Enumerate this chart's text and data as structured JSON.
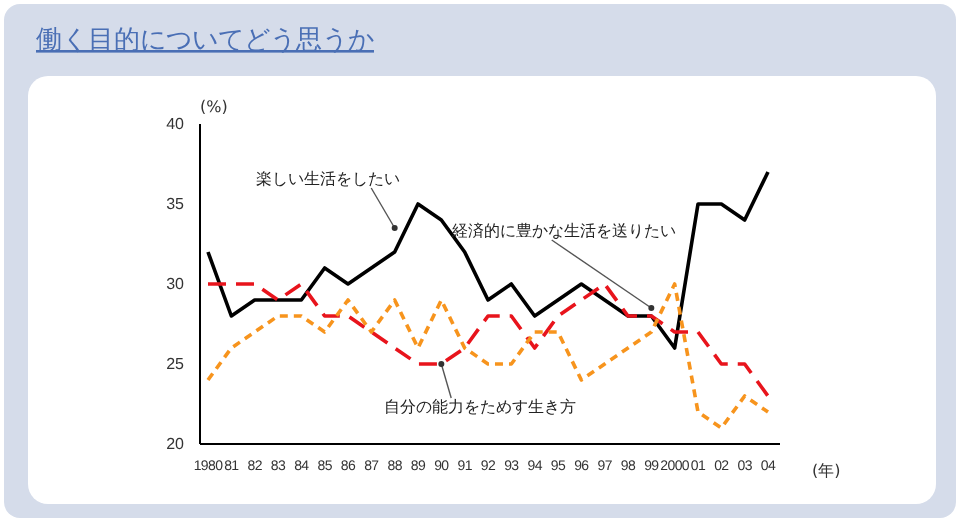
{
  "chart_data": {
    "type": "line",
    "title": "働く目的についてどう思うか",
    "ylabel": "(%)",
    "xlabel": "(年)",
    "categories": [
      "1980",
      "81",
      "82",
      "83",
      "84",
      "85",
      "86",
      "87",
      "88",
      "89",
      "90",
      "91",
      "92",
      "93",
      "94",
      "95",
      "96",
      "97",
      "98",
      "99",
      "2000",
      "01",
      "02",
      "03",
      "04"
    ],
    "series": [
      {
        "color": "#000000",
        "line_style": "solid",
        "values": [
          32,
          28,
          29,
          29,
          29,
          31,
          30,
          31,
          32,
          35,
          34,
          32,
          29,
          30,
          28,
          29,
          30,
          29,
          28,
          28,
          26,
          35,
          35,
          34,
          37
        ]
      },
      {
        "color": "#e8141c",
        "line_style": "dashed",
        "values": [
          30,
          30,
          30,
          29,
          30,
          28,
          28,
          27,
          26,
          25,
          25,
          26,
          28,
          28,
          26,
          28,
          29,
          30,
          28,
          28,
          27,
          27,
          25,
          25,
          23
        ]
      },
      {
        "color": "#f7941d",
        "line_style": "dotted",
        "values": [
          24,
          26,
          27,
          28,
          28,
          27,
          29,
          27,
          29,
          26,
          29,
          26,
          25,
          25,
          27,
          27,
          24,
          25,
          26,
          27,
          30,
          22,
          21,
          23,
          22
        ]
      }
    ],
    "ylim": [
      20,
      40
    ],
    "yticks": [
      20,
      25,
      30,
      35,
      40
    ],
    "grid": false,
    "marker": "none",
    "annotations": [
      {
        "text": "楽しい生活をしたい",
        "x": "88",
        "y": 33.5
      },
      {
        "text": "経済的に豊かな生活を送りたい",
        "x": "99",
        "y": 28.5
      },
      {
        "text": "自分の能力をためす生き方",
        "x": "90",
        "y": 25
      }
    ]
  }
}
